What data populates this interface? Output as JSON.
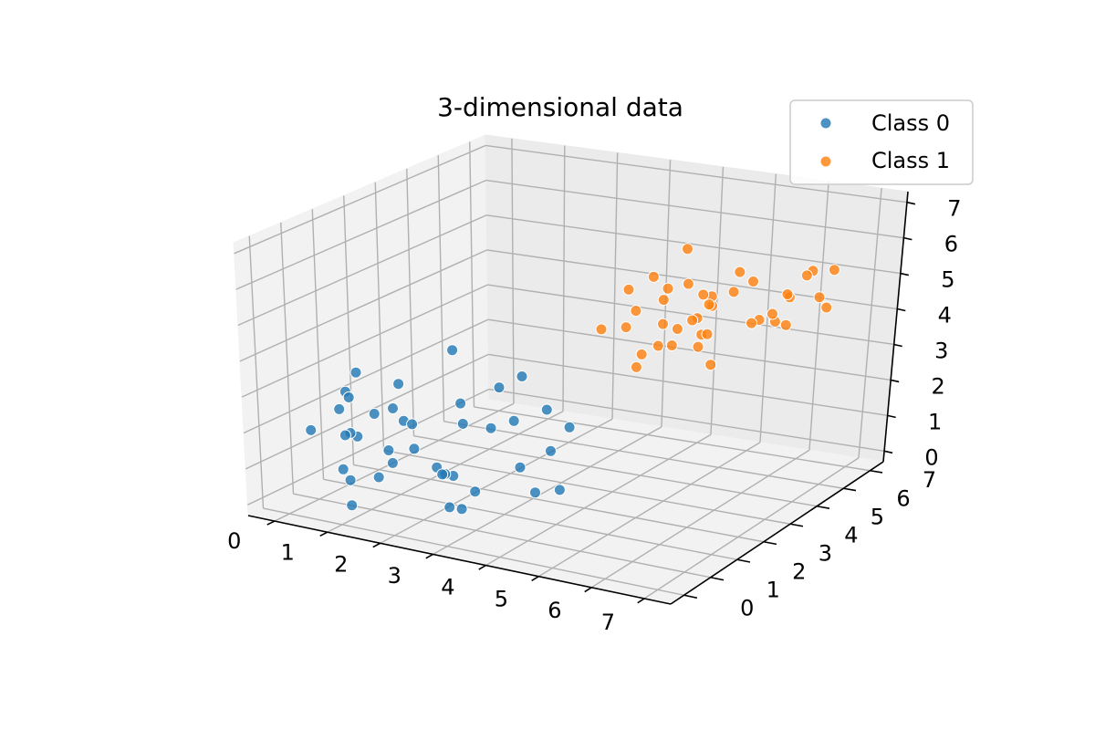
{
  "chart_data": {
    "type": "scatter",
    "title": "3-dimensional data",
    "xlabel": "",
    "ylabel": "",
    "zlabel": "",
    "xlim": [
      -0.5,
      7.5
    ],
    "ylim": [
      -0.5,
      7.5
    ],
    "zlim": [
      -0.3,
      7.3
    ],
    "x_ticks": [
      0,
      1,
      2,
      3,
      4,
      5,
      6,
      7
    ],
    "y_ticks": [
      0,
      1,
      2,
      3,
      4,
      5,
      6,
      7
    ],
    "z_ticks": [
      0,
      1,
      2,
      3,
      4,
      5,
      6,
      7
    ],
    "grid": true,
    "legend_position": "top-right",
    "series": [
      {
        "name": "Class 0",
        "color": "#1f77b4",
        "points": [
          [
            1.4,
            1.1,
            2.6
          ],
          [
            0.8,
            0.6,
            3.1
          ],
          [
            0.5,
            0.9,
            2.4
          ],
          [
            1.2,
            1.8,
            1.9
          ],
          [
            0.6,
            1.3,
            1.5
          ],
          [
            1.9,
            0.9,
            1.7
          ],
          [
            2.3,
            1.5,
            0.8
          ],
          [
            1.1,
            0.2,
            2.2
          ],
          [
            0.3,
            0.3,
            2.0
          ],
          [
            2.7,
            0.5,
            1.4
          ],
          [
            3.3,
            2.0,
            1.1
          ],
          [
            2.0,
            2.3,
            2.4
          ],
          [
            1.5,
            0.4,
            1.0
          ],
          [
            1.8,
            2.4,
            3.8
          ],
          [
            3.2,
            3.1,
            2.2
          ],
          [
            3.0,
            2.6,
            3.3
          ],
          [
            2.5,
            1.0,
            0.2
          ],
          [
            0.7,
            1.7,
            2.0
          ],
          [
            1.0,
            2.0,
            2.8
          ],
          [
            3.5,
            2.7,
            1.3
          ],
          [
            2.9,
            0.7,
            0.4
          ],
          [
            3.7,
            1.8,
            0.6
          ],
          [
            1.3,
            1.1,
            1.4
          ],
          [
            0.2,
            2.0,
            2.9
          ],
          [
            2.4,
            2.9,
            2.7
          ],
          [
            1.7,
            1.2,
            2.2
          ],
          [
            3.1,
            0.8,
            0.9
          ],
          [
            3.8,
            2.8,
            2.0
          ],
          [
            0.9,
            0.5,
            0.7
          ],
          [
            2.1,
            2.2,
            1.9
          ],
          [
            2.6,
            0.4,
            1.6
          ],
          [
            1.6,
            0.7,
            1.3
          ],
          [
            0.4,
            1.4,
            2.5
          ],
          [
            2.2,
            1.3,
            0.9
          ],
          [
            3.4,
            1.6,
            2.6
          ],
          [
            3.9,
            2.3,
            0.5
          ],
          [
            1.0,
            0.1,
            1.2
          ],
          [
            2.8,
            1.9,
            2.1
          ],
          [
            1.2,
            0.0,
            0.3
          ],
          [
            0.6,
            0.9,
            1.7
          ]
        ]
      },
      {
        "name": "Class 1",
        "color": "#ff7f0e",
        "points": [
          [
            5.1,
            5.3,
            4.6
          ],
          [
            4.9,
            4.8,
            5.4
          ],
          [
            5.5,
            4.1,
            4.1
          ],
          [
            4.5,
            4.7,
            4.9
          ],
          [
            5.3,
            4.9,
            5.1
          ],
          [
            4.2,
            4.3,
            4.7
          ],
          [
            5.9,
            5.5,
            4.3
          ],
          [
            6.4,
            5.6,
            5.0
          ],
          [
            5.0,
            3.9,
            5.7
          ],
          [
            4.7,
            5.1,
            6.2
          ],
          [
            6.6,
            6.0,
            5.6
          ],
          [
            5.7,
            4.2,
            3.6
          ],
          [
            4.0,
            4.4,
            5.2
          ],
          [
            5.6,
            5.8,
            4.0
          ],
          [
            6.1,
            5.7,
            4.2
          ],
          [
            5.2,
            5.0,
            4.8
          ],
          [
            4.4,
            3.6,
            4.6
          ],
          [
            6.9,
            6.2,
            5.6
          ],
          [
            5.4,
            4.4,
            5.4
          ],
          [
            4.6,
            5.9,
            3.4
          ],
          [
            5.8,
            4.9,
            5.9
          ],
          [
            4.8,
            4.0,
            4.0
          ],
          [
            6.3,
            5.2,
            4.7
          ],
          [
            5.1,
            4.1,
            4.5
          ],
          [
            4.3,
            4.7,
            5.5
          ],
          [
            6.0,
            6.3,
            3.8
          ],
          [
            5.3,
            3.2,
            5.1
          ],
          [
            6.5,
            6.5,
            4.6
          ],
          [
            4.9,
            4.3,
            3.9
          ],
          [
            5.6,
            5.1,
            5.2
          ],
          [
            6.2,
            5.9,
            4.9
          ],
          [
            4.1,
            3.3,
            4.6
          ],
          [
            5.4,
            4.6,
            4.2
          ],
          [
            5.8,
            5.4,
            5.4
          ],
          [
            4.6,
            3.8,
            3.8
          ],
          [
            6.7,
            6.4,
            4.4
          ],
          [
            5.2,
            4.6,
            4.6
          ],
          [
            4.4,
            4.0,
            3.3
          ],
          [
            6.8,
            5.4,
            5.8
          ],
          [
            5.0,
            4.8,
            4.4
          ]
        ]
      }
    ]
  }
}
